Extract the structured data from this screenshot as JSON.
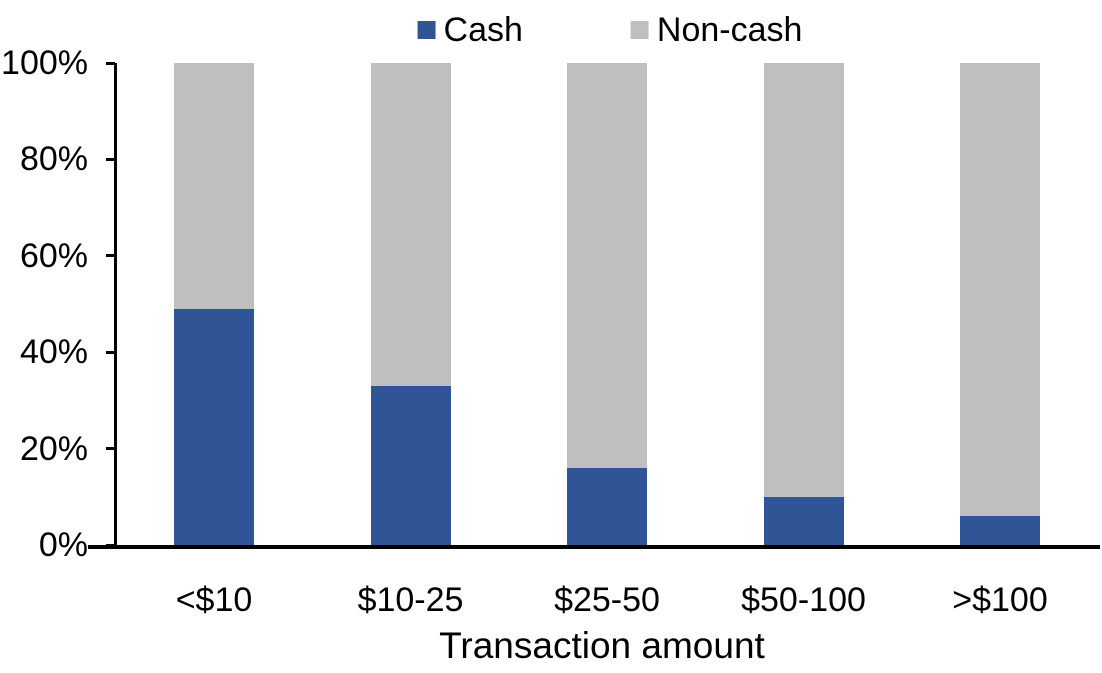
{
  "chart_data": {
    "type": "bar",
    "stacked": true,
    "stacking": "percent",
    "title": "",
    "xlabel": "Transaction amount",
    "ylabel": "",
    "categories": [
      "<$10",
      "$10-25",
      "$25-50",
      "$50-100",
      ">$100"
    ],
    "series": [
      {
        "name": "Cash",
        "color": "#2F5597",
        "values": [
          49,
          33,
          16,
          10,
          6
        ]
      },
      {
        "name": "Non-cash",
        "color": "#BFBFBF",
        "values": [
          51,
          67,
          84,
          90,
          94
        ]
      }
    ],
    "y_axis": {
      "min": 0,
      "max": 100,
      "tick_step": 20,
      "tick_labels": [
        "0%",
        "20%",
        "40%",
        "60%",
        "80%",
        "100%"
      ],
      "format": "percent"
    },
    "legend_position": "top",
    "grid": false
  },
  "colors": {
    "axis": "#000000",
    "text": "#000000",
    "background": "#FFFFFF"
  }
}
